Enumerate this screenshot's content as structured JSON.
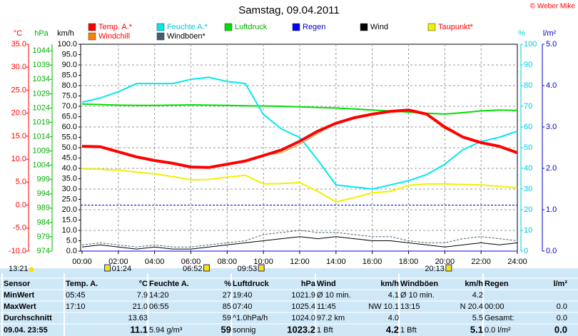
{
  "chart_data": {
    "type": "line",
    "title": "Samstag, 09.04.2011",
    "credit": "© Weber Mike",
    "x": [
      0,
      1,
      2,
      3,
      4,
      5,
      6,
      7,
      8,
      9,
      10,
      11,
      12,
      13,
      14,
      15,
      16,
      17,
      18,
      19,
      20,
      21,
      22,
      23,
      24
    ],
    "xlim": [
      0,
      24
    ],
    "xticks": [
      {
        "value": 0,
        "label": "00:00"
      },
      {
        "value": 2,
        "label": "02:00"
      },
      {
        "value": 4,
        "label": "04:00"
      },
      {
        "value": 6,
        "label": "06:00"
      },
      {
        "value": 8,
        "label": "08:00"
      },
      {
        "value": 10,
        "label": "10:00"
      },
      {
        "value": 12,
        "label": "12:00"
      },
      {
        "value": 14,
        "label": "14:00"
      },
      {
        "value": 16,
        "label": "16:00"
      },
      {
        "value": 18,
        "label": "18:00"
      },
      {
        "value": 20,
        "label": "20:00"
      },
      {
        "value": 22,
        "label": "22:00"
      },
      {
        "value": 24,
        "label": "24:00"
      }
    ],
    "ylabel": "°C",
    "ycolor": "#ff0000",
    "ylim": [
      -10,
      35
    ],
    "yticks": [
      {
        "value": -10,
        "label": "-10.0"
      },
      {
        "value": -5,
        "label": "-5.0"
      },
      {
        "value": 0,
        "label": "0.0"
      },
      {
        "value": 5,
        "label": "5.0"
      },
      {
        "value": 10,
        "label": "10.0"
      },
      {
        "value": 15,
        "label": "15.0"
      },
      {
        "value": 20,
        "label": "20.0"
      },
      {
        "value": 25,
        "label": "25.0"
      },
      {
        "value": 30,
        "label": "30.0"
      },
      {
        "value": 35,
        "label": "35.0"
      }
    ],
    "y2label": "hPa",
    "y2color": "#00b000",
    "y2lim": [
      974,
      1046.3
    ],
    "y2ticks": [
      974,
      979,
      984,
      989,
      994,
      999,
      1004,
      1009,
      1014,
      1019,
      1024,
      1029,
      1034,
      1039,
      1044
    ],
    "y3label": "km/h",
    "y3color": "#000000",
    "y3lim": [
      0,
      100
    ],
    "y3ticks": [
      {
        "value": 0,
        "label": "0.0"
      },
      {
        "value": 5,
        "label": "5.0"
      },
      {
        "value": 10,
        "label": "10.0"
      },
      {
        "value": 15,
        "label": "15.0"
      },
      {
        "value": 20,
        "label": "20.0"
      },
      {
        "value": 25,
        "label": "25.0"
      },
      {
        "value": 30,
        "label": "30.0"
      },
      {
        "value": 35,
        "label": "35.0"
      },
      {
        "value": 40,
        "label": "40.0"
      },
      {
        "value": 45,
        "label": "45.0"
      },
      {
        "value": 50,
        "label": "50.0"
      },
      {
        "value": 55,
        "label": "55.0"
      },
      {
        "value": 60,
        "label": "60.0"
      },
      {
        "value": 65,
        "label": "65.0"
      },
      {
        "value": 70,
        "label": "70.0"
      },
      {
        "value": 75,
        "label": "75.0"
      },
      {
        "value": 80,
        "label": "80.0"
      },
      {
        "value": 85,
        "label": "85.0"
      },
      {
        "value": 90,
        "label": "90.0"
      },
      {
        "value": 95,
        "label": "95.0"
      },
      {
        "value": 100,
        "label": "100.0"
      }
    ],
    "y4label": "%",
    "y4color": "#00c8e0",
    "y4lim": [
      0,
      100
    ],
    "y4ticks": [
      0,
      10,
      20,
      30,
      40,
      50,
      60,
      70,
      80,
      90,
      100
    ],
    "y5label": "l/m²",
    "y5color": "#0000cc",
    "y5lim": [
      0,
      5
    ],
    "y5ticks": [
      {
        "value": 0,
        "label": "0.0"
      },
      {
        "value": 1,
        "label": "1.0"
      },
      {
        "value": 2,
        "label": "2.0"
      },
      {
        "value": 3,
        "label": "3.0"
      },
      {
        "value": 4,
        "label": "4.0"
      },
      {
        "value": 5,
        "label": "5.0"
      }
    ],
    "grid": true,
    "reference_line": {
      "axis": "y",
      "value": 0,
      "color": "#0000cc"
    },
    "series": [
      {
        "name": "Luftdruck",
        "color": "#00e000",
        "label_color": "#00b000",
        "axis": "y2",
        "width": 2,
        "values": [
          1025.4,
          1025.2,
          1025.0,
          1024.9,
          1024.9,
          1025.0,
          1025.1,
          1025.0,
          1024.9,
          1024.8,
          1024.7,
          1024.6,
          1024.4,
          1024.2,
          1024.0,
          1023.7,
          1023.3,
          1023.0,
          1022.6,
          1022.2,
          1021.9,
          1022.4,
          1023.0,
          1023.3,
          1023.2
        ]
      },
      {
        "name": "Feuchte A.*",
        "color": "#00e8f0",
        "label_color": "#00c8e0",
        "axis": "y4",
        "width": 2,
        "values": [
          72,
          74,
          77,
          81,
          81,
          81,
          83,
          84,
          82,
          81,
          66,
          59,
          55,
          44,
          32,
          31,
          30,
          32,
          34,
          37,
          42,
          49,
          53,
          55,
          58
        ]
      },
      {
        "name": "Taupunkt*",
        "color": "#f0f000",
        "label_color": "#ff0000",
        "axis": "y",
        "width": 2,
        "values": [
          7.9,
          7.8,
          7.6,
          7.2,
          6.8,
          6.2,
          5.5,
          5.6,
          6.1,
          6.5,
          4.6,
          4.7,
          4.9,
          3.0,
          0.7,
          1.6,
          2.7,
          3.0,
          4.3,
          4.6,
          4.6,
          4.5,
          4.4,
          4.1,
          3.8
        ]
      },
      {
        "name": "Wind",
        "color": "#000000",
        "label_color": "#000000",
        "axis": "y3",
        "width": 1,
        "values": [
          2,
          3,
          2,
          1,
          2,
          1,
          1,
          2,
          3,
          4,
          5,
          6,
          7,
          6,
          7,
          6,
          5,
          5,
          4,
          3,
          2,
          3,
          4,
          3,
          4
        ]
      },
      {
        "name": "Windböen*",
        "color": "#406070",
        "label_color": "#000000",
        "axis": "y3",
        "width": 1,
        "dashed": true,
        "values": [
          3,
          4,
          3,
          2,
          3,
          2,
          2,
          3,
          4,
          5,
          8,
          9,
          10,
          9,
          9,
          8,
          7,
          7,
          5,
          4,
          4,
          6,
          7,
          6,
          5
        ]
      },
      {
        "name": "Regen",
        "color": "#0000ff",
        "label_color": "#0000cc",
        "axis": "y5",
        "width": 1,
        "values": [
          0,
          0,
          0,
          0,
          0,
          0,
          0,
          0,
          0,
          0,
          0,
          0,
          0,
          0,
          0,
          0,
          0,
          0,
          0,
          0,
          0,
          0,
          0,
          0,
          0
        ]
      },
      {
        "name": "Windchill",
        "color": "#ff8000",
        "label_color": "#ff0000",
        "axis": "y",
        "width": 1,
        "values": [
          12.8,
          12.7,
          11.6,
          10.5,
          9.7,
          9.1,
          8.3,
          8.2,
          8.9,
          9.6,
          10.8,
          11.4,
          13.2,
          15.6,
          17.8,
          19.0,
          19.8,
          20.4,
          20.7,
          19.6,
          16.6,
          14.8,
          13.6,
          12.8,
          11.4
        ]
      },
      {
        "name": "Temp. A.*",
        "color": "#ff0000",
        "label_color": "#ff0000",
        "axis": "y",
        "width": 4,
        "values": [
          12.8,
          12.7,
          11.6,
          10.5,
          9.7,
          9.1,
          8.3,
          8.2,
          8.9,
          9.6,
          10.8,
          12.0,
          13.9,
          16.1,
          17.8,
          19.0,
          19.8,
          20.4,
          20.7,
          19.8,
          17.0,
          14.8,
          13.6,
          12.8,
          11.4
        ]
      }
    ],
    "markers": [
      {
        "x": 1.4,
        "label": "01:24"
      },
      {
        "x": 6.867,
        "label": "06:52"
      },
      {
        "x": 9.883,
        "label": "09:53"
      },
      {
        "x": 20.217,
        "label": "20:13"
      }
    ],
    "corner_time": "13:21"
  },
  "table": {
    "rows": [
      [
        [
          "Sensor"
        ],
        [
          "Temp. A.",
          "°C"
        ],
        [
          "Feuchte A.",
          "%"
        ],
        [
          "Luftdruck",
          "hPa"
        ],
        [
          "Wind",
          "km/h"
        ],
        [
          "Windböen",
          "km/h"
        ],
        [
          "Regen",
          "l/m²"
        ]
      ],
      [
        [
          "MinWert"
        ],
        [
          "05:45",
          "7.9"
        ],
        [
          "14:20",
          "27"
        ],
        [
          "19:40",
          "1021.9"
        ],
        [
          "Ø 10 min.",
          "4.1"
        ],
        [
          "Ø 10 min.",
          "4.2"
        ],
        []
      ],
      [
        [
          "MaxWert"
        ],
        [
          "17:10",
          "21.0"
        ],
        [
          "06:55",
          "85"
        ],
        [
          "07:40",
          "1025.4"
        ],
        [
          "11:45",
          "NW 10.1"
        ],
        [
          "13:15",
          "N 20.4"
        ],
        [
          "00:00",
          "0.0"
        ]
      ],
      [
        [
          "Durchschnitt"
        ],
        [
          "13.63"
        ],
        [
          "59"
        ],
        [
          "^1.0hPa/h",
          "1024.0"
        ],
        [
          "97.2 km",
          "4.0"
        ],
        [
          "5.5"
        ],
        [
          "Gesamt:",
          "0.0"
        ]
      ],
      [
        [
          "09.04. 23:55"
        ],
        [
          "11.1"
        ],
        [
          "5.94 g/m³",
          "59"
        ],
        [
          "sonnig",
          "1023.2"
        ],
        [
          "1 Bft",
          "4.2"
        ],
        [
          "1 Bft",
          "5.1"
        ],
        [
          "0.0 l/m²",
          "0.0"
        ]
      ]
    ]
  }
}
